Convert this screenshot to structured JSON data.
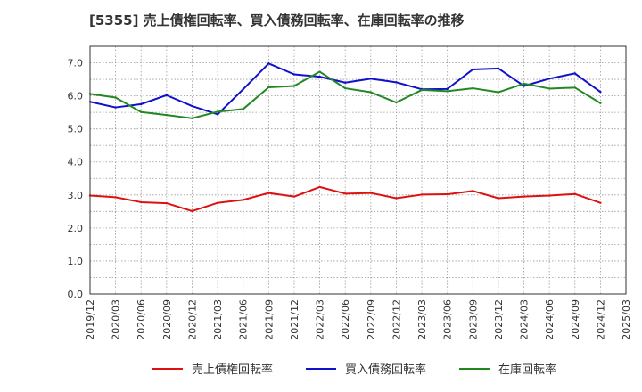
{
  "chart_data": {
    "type": "line",
    "title": "[5355]  売上債権回転率、買入債務回転率、在庫回転率の推移",
    "xlabel": "",
    "ylabel": "",
    "ylim": [
      0,
      7.5
    ],
    "yticks": [
      0.0,
      1.0,
      2.0,
      3.0,
      4.0,
      5.0,
      6.0,
      7.0
    ],
    "ytick_labels": [
      "0.0",
      "1.0",
      "2.0",
      "3.0",
      "4.0",
      "5.0",
      "6.0",
      "7.0"
    ],
    "grid": true,
    "legend_position": "bottom",
    "categories": [
      "2019/12",
      "2020/03",
      "2020/06",
      "2020/09",
      "2020/12",
      "2021/03",
      "2021/06",
      "2021/09",
      "2021/12",
      "2022/03",
      "2022/06",
      "2022/09",
      "2022/12",
      "2023/03",
      "2023/06",
      "2023/09",
      "2023/12",
      "2024/03",
      "2024/06",
      "2024/09",
      "2024/12",
      "2025/03"
    ],
    "series": [
      {
        "name": "売上債権回転率",
        "color": "#dd1111",
        "values": [
          2.98,
          2.93,
          2.78,
          2.75,
          2.51,
          2.76,
          2.85,
          3.06,
          2.95,
          3.24,
          3.04,
          3.06,
          2.9,
          3.01,
          3.02,
          3.12,
          2.9,
          2.95,
          2.98,
          3.03,
          2.76,
          null
        ]
      },
      {
        "name": "買入債務回転率",
        "color": "#1111cc",
        "values": [
          5.82,
          5.65,
          5.75,
          6.02,
          5.69,
          5.44,
          6.2,
          6.98,
          6.65,
          6.58,
          6.4,
          6.52,
          6.41,
          6.2,
          6.21,
          6.8,
          6.83,
          6.3,
          6.52,
          6.68,
          6.12,
          null
        ]
      },
      {
        "name": "在庫回転率",
        "color": "#228822",
        "values": [
          6.06,
          5.95,
          5.51,
          5.42,
          5.32,
          5.52,
          5.6,
          6.26,
          6.3,
          6.73,
          6.23,
          6.11,
          5.8,
          6.18,
          6.14,
          6.23,
          6.11,
          6.37,
          6.22,
          6.25,
          5.78,
          null
        ]
      }
    ]
  }
}
